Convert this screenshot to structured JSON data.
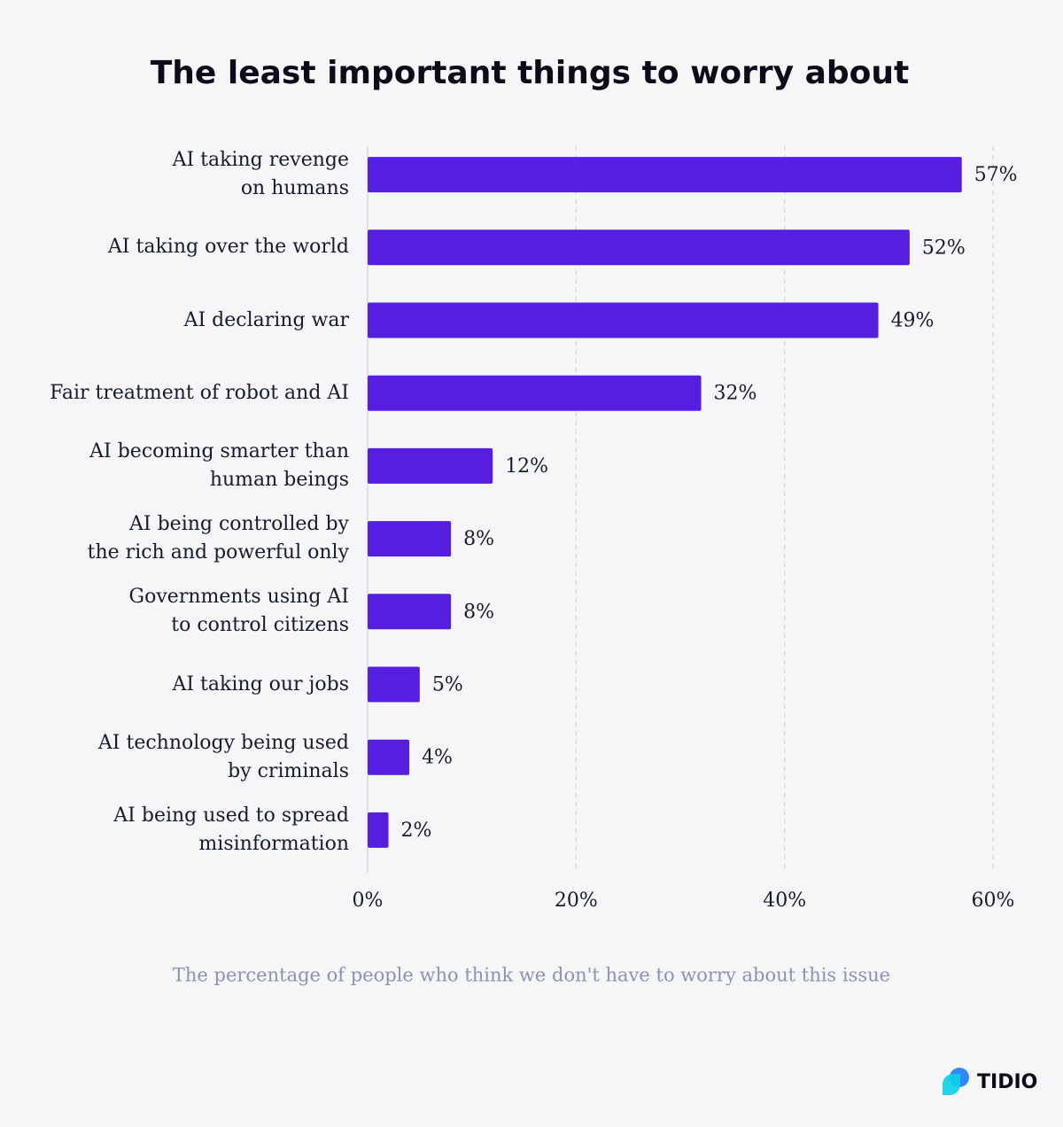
{
  "chart_data": {
    "type": "bar",
    "orientation": "horizontal",
    "title": "The least important things to worry about",
    "categories": [
      "AI taking revenge\non humans",
      "AI taking over the world",
      "AI declaring war",
      "Fair treatment of robot and AI",
      "AI becoming smarter than\nhuman beings",
      "AI being controlled by\nthe rich and powerful only",
      "Governments using AI\nto control citizens",
      "AI taking our jobs",
      "AI technology being used\nby criminals",
      "AI being used to spread\nmisinformation"
    ],
    "values": [
      57,
      52,
      49,
      32,
      12,
      8,
      8,
      5,
      4,
      2
    ],
    "value_labels": [
      "57%",
      "52%",
      "49%",
      "32%",
      "12%",
      "8%",
      "8%",
      "5%",
      "4%",
      "2%"
    ],
    "color": "#561fe0",
    "xlim": [
      0,
      60
    ],
    "xticks": [
      {
        "value": 0,
        "label": "0%"
      },
      {
        "value": 20,
        "label": "20%"
      },
      {
        "value": 40,
        "label": "40%"
      },
      {
        "value": 60,
        "label": "60%"
      }
    ],
    "grid": true,
    "caption": "The percentage of people who think we don't have to worry about this issue",
    "brand": "TIDIO"
  }
}
